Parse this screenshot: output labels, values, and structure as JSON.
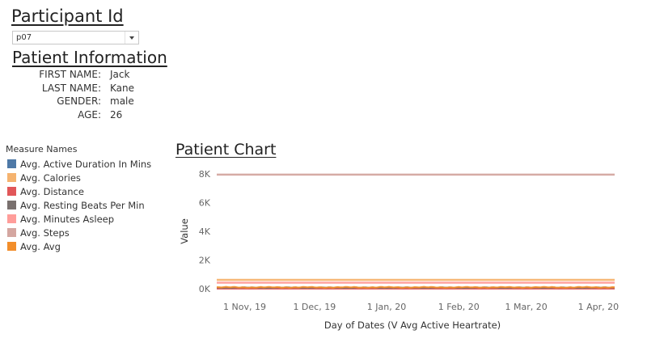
{
  "participant": {
    "heading": "Participant Id",
    "selected": "p07"
  },
  "patient_info": {
    "heading": "Patient Information",
    "fields": [
      {
        "label": "FIRST NAME:",
        "value": "Jack"
      },
      {
        "label": "LAST NAME:",
        "value": "Kane"
      },
      {
        "label": "GENDER:",
        "value": "male"
      },
      {
        "label": "AGE:",
        "value": "26"
      }
    ]
  },
  "legend": {
    "title": "Measure Names",
    "items": [
      {
        "label": "Avg. Active Duration In Mins",
        "color": "#4e79a7"
      },
      {
        "label": "Avg. Calories",
        "color": "#f5b36f"
      },
      {
        "label": "Avg. Distance",
        "color": "#e15759"
      },
      {
        "label": "Avg. Resting Beats Per Min",
        "color": "#79706e"
      },
      {
        "label": "Avg. Minutes Asleep",
        "color": "#ff9d9a"
      },
      {
        "label": "Avg. Steps",
        "color": "#d4a6a0"
      },
      {
        "label": "Avg. Avg",
        "color": "#f28e2b"
      }
    ]
  },
  "chart_data": {
    "type": "line",
    "title": "Patient Chart",
    "xlabel": "Day of Dates (V Avg Active Heartrate)",
    "ylabel": "Value",
    "ylim": [
      0,
      8000
    ],
    "yticks": [
      {
        "value": 0,
        "label": "0K"
      },
      {
        "value": 2000,
        "label": "2K"
      },
      {
        "value": 4000,
        "label": "4K"
      },
      {
        "value": 6000,
        "label": "6K"
      },
      {
        "value": 8000,
        "label": "8K"
      }
    ],
    "xlim": [
      "2019-10-20",
      "2020-04-08"
    ],
    "xticks": [
      {
        "date": "2019-11-01",
        "label": "1 Nov, 19"
      },
      {
        "date": "2019-12-01",
        "label": "1 Dec, 19"
      },
      {
        "date": "2020-01-01",
        "label": "1 Jan, 20"
      },
      {
        "date": "2020-02-01",
        "label": "1 Feb, 20"
      },
      {
        "date": "2020-03-01",
        "label": "1 Mar, 20"
      },
      {
        "date": "2020-04-01",
        "label": "1 Apr, 20"
      }
    ],
    "grid": false,
    "legend": "left",
    "series": [
      {
        "name": "Avg. Active Duration In Mins",
        "color": "#4e79a7",
        "x": [
          "2019-10-20",
          "2020-04-08"
        ],
        "values": [
          35,
          35
        ]
      },
      {
        "name": "Avg. Calories",
        "color": "#f5b36f",
        "x": [
          "2019-10-20",
          "2020-04-08"
        ],
        "values": [
          620,
          620
        ]
      },
      {
        "name": "Avg. Distance",
        "color": "#e15759",
        "x": [
          "2019-10-20",
          "2020-04-08"
        ],
        "values": [
          5,
          5
        ]
      },
      {
        "name": "Avg. Resting Beats Per Min",
        "color": "#79706e",
        "x": [
          "2019-10-20",
          "2020-04-08"
        ],
        "values": [
          80,
          80
        ]
      },
      {
        "name": "Avg. Minutes Asleep",
        "color": "#ff9d9a",
        "x": [
          "2019-10-20",
          "2020-04-08"
        ],
        "values": [
          420,
          420
        ]
      },
      {
        "name": "Avg. Steps",
        "color": "#d4a6a0",
        "x": [
          "2019-10-20",
          "2020-04-08"
        ],
        "values": [
          7950,
          7950
        ]
      },
      {
        "name": "Avg. Avg",
        "color": "#f28e2b",
        "x": [
          "2019-10-20",
          "2020-04-08"
        ],
        "values": [
          100,
          100
        ]
      }
    ]
  }
}
